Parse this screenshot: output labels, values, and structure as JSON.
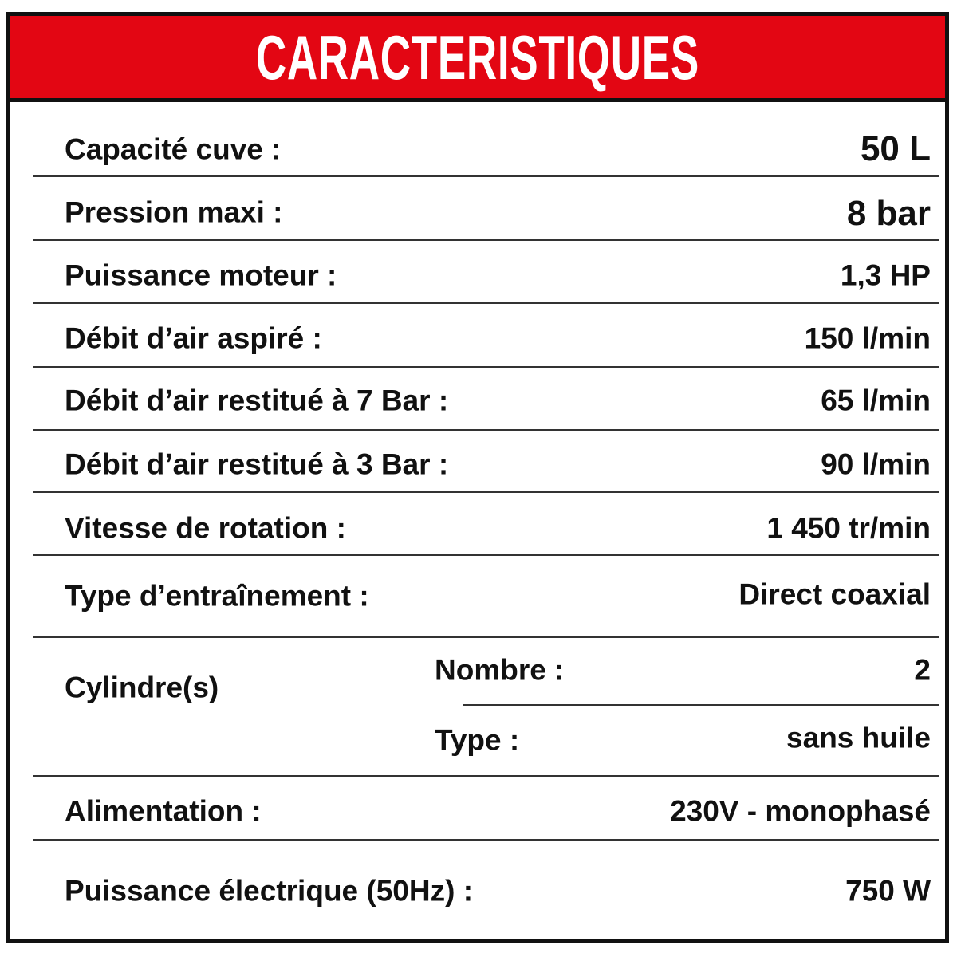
{
  "title": "CARACTERISTIQUES",
  "colors": {
    "header": "#e30613",
    "border": "#111111",
    "text": "#111111"
  },
  "rows": [
    {
      "label": "Capacité cuve :",
      "value": "50 L"
    },
    {
      "label": "Pression maxi :",
      "value": "8 bar"
    },
    {
      "label": "Puissance moteur :",
      "value": "1,3 HP"
    },
    {
      "label": "Débit d’air aspiré :",
      "value": "150 l/min"
    },
    {
      "label": "Débit d’air restitué à 7 Bar :",
      "value": "65 l/min"
    },
    {
      "label": "Débit d’air restitué à 3 Bar :",
      "value": "90 l/min"
    },
    {
      "label": "Vitesse de rotation :",
      "value": "1 450 tr/min"
    },
    {
      "label": "Type d’entraînement :",
      "value": "Direct coaxial"
    }
  ],
  "cylinders": {
    "label": "Cylindre(s)",
    "number_label": "Nombre :",
    "number_value": "2",
    "type_label": "Type :",
    "type_value": "sans huile"
  },
  "rows_after": [
    {
      "label": "Alimentation :",
      "value": "230V - monophasé"
    },
    {
      "label": "Puissance électrique (50Hz) :",
      "value": "750 W"
    }
  ]
}
